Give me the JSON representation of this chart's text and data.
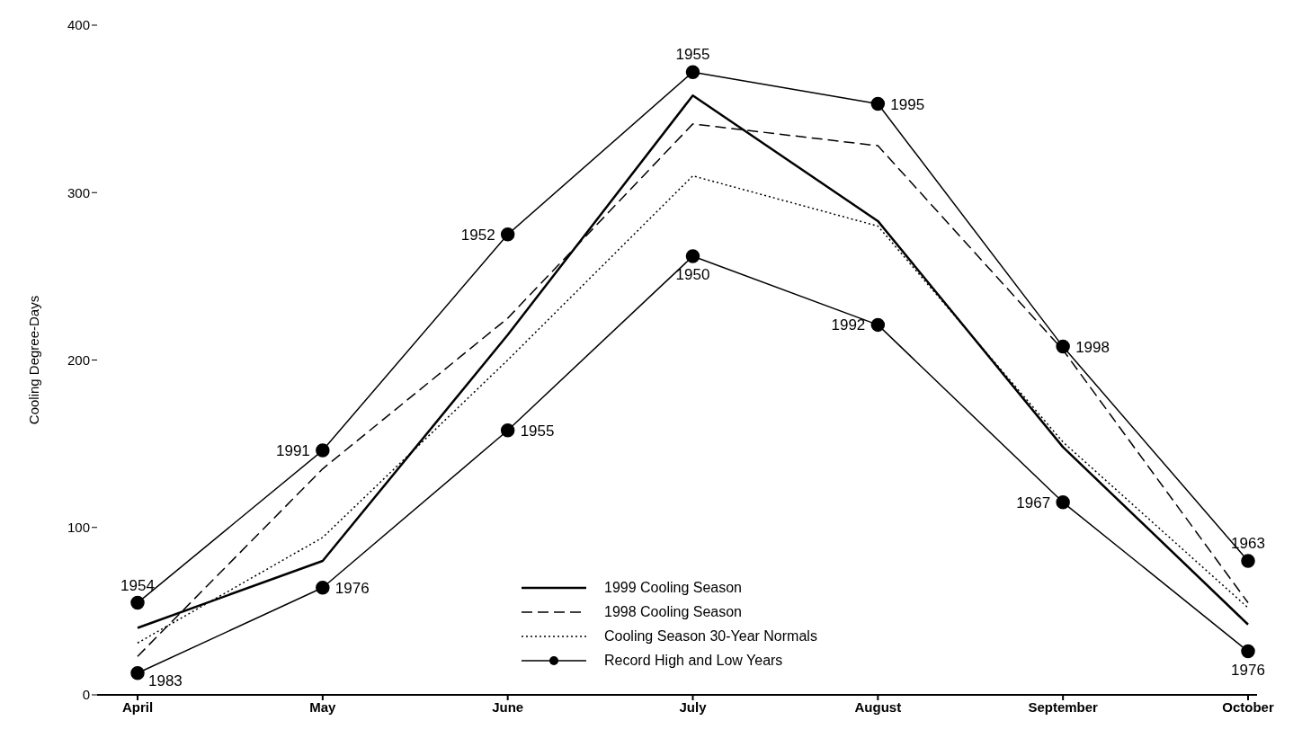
{
  "chart_data": {
    "type": "line",
    "ylabel": "Cooling Degree-Days",
    "categories": [
      "April",
      "May",
      "June",
      "July",
      "August",
      "September",
      "October"
    ],
    "series": [
      {
        "name": "1999 Cooling Season",
        "color": "#000000",
        "line_style": "solid",
        "marker": "none",
        "values": [
          40,
          80,
          215,
          358,
          283,
          148,
          42
        ]
      },
      {
        "name": "1998 Cooling Season",
        "color": "#000000",
        "line_style": "dashed",
        "marker": "none",
        "values": [
          23,
          135,
          225,
          341,
          328,
          206,
          55
        ]
      },
      {
        "name": "Cooling Season 30-Year Normals",
        "color": "#000000",
        "line_style": "dotted",
        "marker": "none",
        "values": [
          31,
          94,
          200,
          310,
          280,
          151,
          52
        ]
      },
      {
        "name": "Record High and Low Years",
        "color": "#000000",
        "line_style": "solid",
        "marker": "circle",
        "values": [
          55,
          146,
          275,
          372,
          353,
          208,
          80
        ]
      },
      {
        "color": "#000000",
        "line_style": "solid",
        "marker": "circle",
        "values": [
          13,
          64,
          158,
          262,
          221,
          115,
          26
        ]
      }
    ],
    "annotations": [
      {
        "text": "1954",
        "x": "April",
        "y": 55
      },
      {
        "text": "1991",
        "x": "May",
        "y": 146
      },
      {
        "text": "1952",
        "x": "June",
        "y": 275
      },
      {
        "text": "1955",
        "x": "July",
        "y": 372
      },
      {
        "text": "1995",
        "x": "August",
        "y": 353
      },
      {
        "text": "1998",
        "x": "September",
        "y": 208
      },
      {
        "text": "1963",
        "x": "October",
        "y": 80
      },
      {
        "text": "1983",
        "x": "April",
        "y": 13
      },
      {
        "text": "1976",
        "x": "May",
        "y": 64
      },
      {
        "text": "1955",
        "x": "June",
        "y": 158
      },
      {
        "text": "1950",
        "x": "July",
        "y": 262
      },
      {
        "text": "1992",
        "x": "August",
        "y": 221
      },
      {
        "text": "1967",
        "x": "September",
        "y": 115
      },
      {
        "text": "1976",
        "x": "October",
        "y": 26
      }
    ],
    "ylim": [
      0,
      400
    ],
    "yticks": [
      0,
      100,
      200,
      300,
      400
    ],
    "grid": false,
    "legend": "bottom"
  }
}
